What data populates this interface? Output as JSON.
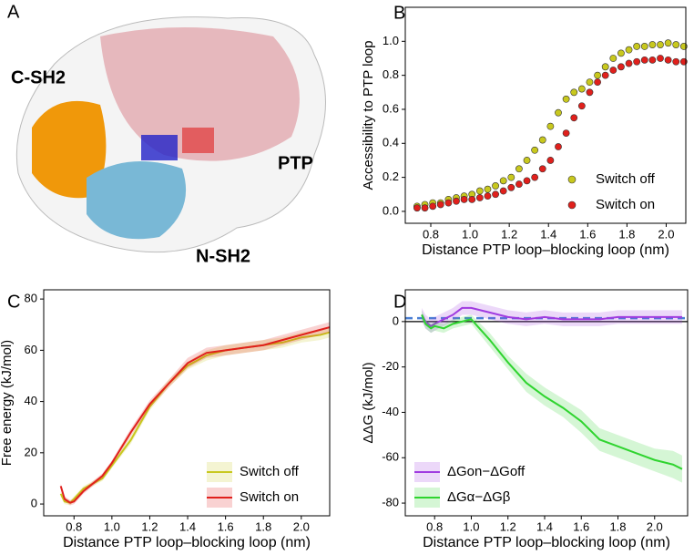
{
  "panel_a": {
    "label": "A",
    "annotations": [
      "C-SH2",
      "PTP",
      "N-SH2"
    ]
  },
  "chart_data": [
    {
      "type": "scatter",
      "label": "B",
      "x_label": "Distance PTP loop–blocking loop (nm)",
      "y_label": "Accessibility to PTP loop",
      "xlim": [
        0.67,
        2.1
      ],
      "ylim": [
        -0.07,
        1.2
      ],
      "xticks": [
        0.8,
        {
          "value": 1,
          "label": "1.0"
        },
        1.2,
        1.4,
        1.6,
        1.8,
        {
          "value": 2,
          "label": "2.0"
        }
      ],
      "yticks": [
        {
          "value": 0,
          "label": "0.0"
        },
        0.2,
        0.4,
        0.6,
        0.8,
        {
          "value": 1,
          "label": "1.0"
        }
      ],
      "legend": "lower right",
      "x": [
        0.73,
        0.77,
        0.81,
        0.85,
        0.89,
        0.93,
        0.97,
        1.01,
        1.05,
        1.09,
        1.13,
        1.17,
        1.21,
        1.25,
        1.29,
        1.33,
        1.37,
        1.41,
        1.45,
        1.49,
        1.53,
        1.57,
        1.61,
        1.65,
        1.69,
        1.73,
        1.77,
        1.81,
        1.85,
        1.89,
        1.93,
        1.97,
        2.01,
        2.05,
        2.09
      ],
      "series": [
        {
          "name": "Switch off",
          "color": "#c8c81e",
          "values": [
            0.03,
            0.04,
            0.05,
            0.05,
            0.07,
            0.08,
            0.09,
            0.1,
            0.12,
            0.13,
            0.15,
            0.18,
            0.2,
            0.25,
            0.3,
            0.36,
            0.42,
            0.5,
            0.58,
            0.66,
            0.7,
            0.72,
            0.76,
            0.8,
            0.85,
            0.9,
            0.93,
            0.95,
            0.97,
            0.97,
            0.98,
            0.98,
            0.99,
            0.98,
            0.97
          ]
        },
        {
          "name": "Switch on",
          "color": "#e0201c",
          "values": [
            0.02,
            0.02,
            0.03,
            0.04,
            0.05,
            0.06,
            0.07,
            0.07,
            0.08,
            0.09,
            0.1,
            0.12,
            0.14,
            0.16,
            0.18,
            0.2,
            0.25,
            0.3,
            0.38,
            0.46,
            0.55,
            0.62,
            0.7,
            0.76,
            0.8,
            0.83,
            0.85,
            0.87,
            0.88,
            0.89,
            0.89,
            0.9,
            0.89,
            0.88,
            0.88
          ]
        }
      ]
    },
    {
      "type": "line",
      "label": "C",
      "x_label": "Distance PTP loop–blocking loop (nm)",
      "y_label": "Free energy (kJ/mol)",
      "xlim": [
        0.64,
        2.15
      ],
      "ylim": [
        -4.6,
        83.6
      ],
      "xticks": [
        0.8,
        {
          "value": 1,
          "label": "1.0"
        },
        1.2,
        1.4,
        1.6,
        1.8,
        {
          "value": 2,
          "label": "2.0"
        }
      ],
      "yticks": [
        0,
        20,
        40,
        60,
        80
      ],
      "legend": "lower right",
      "x": [
        0.73,
        0.75,
        0.78,
        0.8,
        0.85,
        0.9,
        0.95,
        1.0,
        1.1,
        1.2,
        1.3,
        1.4,
        1.5,
        1.6,
        1.7,
        1.8,
        1.9,
        2.0,
        2.1,
        2.15
      ],
      "series": [
        {
          "name": "Switch off",
          "color": "#c8c81e",
          "values": [
            4,
            1,
            0.5,
            2,
            6,
            8,
            10,
            15,
            25,
            38,
            47,
            54,
            58,
            60,
            61,
            62,
            63,
            65,
            66,
            67
          ],
          "errors": [
            1,
            1,
            1,
            1,
            1,
            1,
            1,
            1,
            1.5,
            1.5,
            1.5,
            1.5,
            2,
            2,
            2,
            2,
            2,
            2,
            2,
            2
          ]
        },
        {
          "name": "Switch on",
          "color": "#e0201c",
          "values": [
            7,
            2,
            0.5,
            1,
            5,
            8,
            11,
            16,
            28,
            39,
            47,
            55,
            59,
            60,
            61,
            62,
            64,
            66,
            68,
            69
          ],
          "errors": [
            1,
            1,
            1,
            1,
            1,
            1,
            1,
            1,
            1.5,
            1.5,
            1.5,
            2,
            2,
            2,
            2,
            2,
            2,
            2,
            2,
            2
          ]
        }
      ]
    },
    {
      "type": "line",
      "label": "D",
      "x_label": "Distance PTP loop–blocking loop (nm)",
      "y_label": "ΔΔG (kJ/mol)",
      "xlim": [
        0.64,
        2.18
      ],
      "ylim": [
        -85.6,
        14
      ],
      "xticks": [
        0.8,
        {
          "value": 1,
          "label": "1.0"
        },
        1.2,
        1.4,
        1.6,
        1.8,
        {
          "value": 2,
          "label": "2.0"
        }
      ],
      "yticks": [
        -80,
        -60,
        -40,
        -20,
        0
      ],
      "legend": "lower left",
      "hlines": [
        {
          "value": 0,
          "color": "#000000"
        },
        {
          "value": 1.5,
          "color": "#4a7fd4",
          "dashed": true
        }
      ],
      "x": [
        0.73,
        0.75,
        0.78,
        0.8,
        0.85,
        0.9,
        0.95,
        1.0,
        1.1,
        1.2,
        1.3,
        1.4,
        1.5,
        1.6,
        1.7,
        1.8,
        1.9,
        2.0,
        2.1,
        2.15
      ],
      "series": [
        {
          "name": "ΔGon−ΔGoff",
          "color": "#a03be0",
          "values": [
            3,
            0,
            -2,
            -1,
            1,
            3,
            6,
            6,
            4,
            2,
            1,
            2,
            1,
            1,
            1,
            2,
            2,
            2,
            2,
            2
          ],
          "errors": [
            3,
            3,
            3,
            3,
            3,
            3,
            3,
            3,
            3,
            3,
            3,
            3,
            3,
            3,
            3,
            3,
            3,
            3,
            3,
            3
          ]
        },
        {
          "name": "ΔGα−ΔGβ",
          "color": "#2fd42f",
          "values": [
            3,
            -1,
            -3,
            -2,
            -3,
            -1,
            0,
            1,
            -8,
            -18,
            -27,
            -33,
            -38,
            -44,
            -52,
            -55,
            -58,
            -61,
            -63,
            -65
          ],
          "errors": [
            2,
            2,
            2,
            2,
            2,
            2,
            2,
            2,
            3,
            3,
            4,
            4,
            4,
            5,
            5,
            5,
            5,
            5,
            6,
            6
          ]
        }
      ]
    }
  ]
}
